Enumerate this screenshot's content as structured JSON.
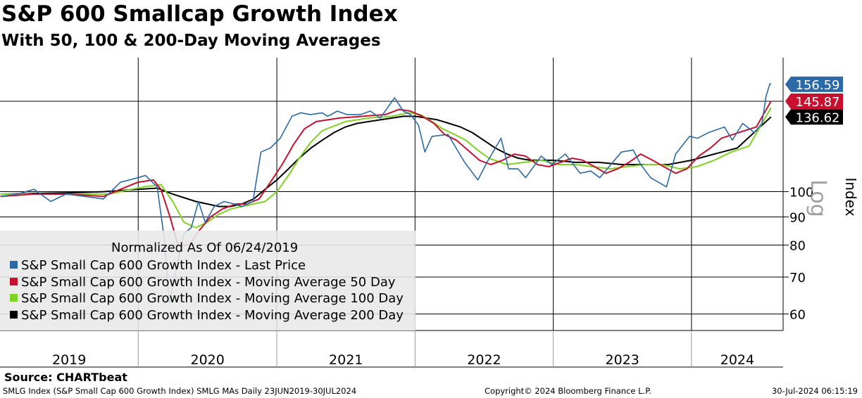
{
  "title": "S&P 600 Smallcap Growth Index",
  "subtitle": "With 50, 100 & 200-Day Moving Averages",
  "source": "Source: CHARTbeat",
  "footer": {
    "left": "SMLG Index (S&P Small Cap 600 Growth Index) SMLG MAs  Daily 23JUN2019-30JUL2024",
    "middle": "Copyright© 2024 Bloomberg Finance L.P.",
    "right": "30-Jul-2024 06:15:19"
  },
  "legend": {
    "note": "Normalized As Of 06/24/2019",
    "items": [
      {
        "label": "S&P Small Cap 600 Growth Index - Last Price",
        "color": "#2b6aa6"
      },
      {
        "label": "S&P Small Cap 600 Growth Index - Moving Average 50 Day",
        "color": "#c8102e"
      },
      {
        "label": "S&P Small Cap 600 Growth Index - Moving Average 100 Day",
        "color": "#7fd321"
      },
      {
        "label": "S&P Small Cap 600 Growth Index - Moving Average 200 Day",
        "color": "#000000"
      }
    ]
  },
  "chart_data": {
    "type": "line",
    "title": "S&P 600 Smallcap Growth Index",
    "subtitle": "With 50, 100 & 200-Day Moving Averages",
    "ylabel": "Index",
    "yscale": "log",
    "yscale_label": "Log",
    "ylim": [
      56,
      175
    ],
    "y_ticks": [
      60,
      70,
      80,
      90,
      100
    ],
    "xlim": [
      "2019-01-01",
      "2024-08-30"
    ],
    "x_year_labels": [
      "2019",
      "2020",
      "2021",
      "2022",
      "2023",
      "2024"
    ],
    "last_value_tags": [
      {
        "value": "156.59",
        "bg": "#2b6aa6",
        "fg": "#ffffff",
        "series": "Last Price"
      },
      {
        "value": "145.87",
        "bg": "#c8102e",
        "fg": "#ffffff",
        "series": "Moving Average 50 Day"
      },
      {
        "value": "136.62",
        "bg": "#000000",
        "fg": "#ffffff",
        "series": "Moving Average 200 Day"
      }
    ],
    "series": [
      {
        "name": "S&P Small Cap 600 Growth Index - Last Price",
        "color": "#2b6aa6",
        "x": [
          "2019-01-02",
          "2019-02-15",
          "2019-04-01",
          "2019-05-15",
          "2019-06-24",
          "2019-08-15",
          "2019-10-01",
          "2019-11-15",
          "2019-12-31",
          "2020-01-20",
          "2020-02-20",
          "2020-03-10",
          "2020-03-23",
          "2020-04-10",
          "2020-05-01",
          "2020-05-20",
          "2020-06-08",
          "2020-06-26",
          "2020-07-20",
          "2020-08-15",
          "2020-09-10",
          "2020-10-01",
          "2020-10-30",
          "2020-11-20",
          "2020-12-15",
          "2021-01-10",
          "2021-02-10",
          "2021-03-05",
          "2021-03-31",
          "2021-05-01",
          "2021-05-15",
          "2021-06-10",
          "2021-07-05",
          "2021-08-10",
          "2021-09-05",
          "2021-10-01",
          "2021-11-08",
          "2021-12-01",
          "2021-12-20",
          "2022-01-10",
          "2022-01-27",
          "2022-02-15",
          "2022-03-29",
          "2022-05-12",
          "2022-06-16",
          "2022-07-10",
          "2022-08-16",
          "2022-09-05",
          "2022-09-30",
          "2022-10-20",
          "2022-11-30",
          "2022-12-28",
          "2023-02-02",
          "2023-03-13",
          "2023-04-10",
          "2023-05-04",
          "2023-06-30",
          "2023-07-31",
          "2023-08-20",
          "2023-09-15",
          "2023-10-27",
          "2023-11-20",
          "2023-12-27",
          "2024-01-17",
          "2024-02-15",
          "2024-03-28",
          "2024-04-18",
          "2024-05-15",
          "2024-06-15",
          "2024-07-05",
          "2024-07-16",
          "2024-07-26",
          "2024-07-29"
        ],
        "values": [
          98,
          99,
          101,
          96,
          99,
          98,
          97,
          104,
          106,
          107,
          102,
          82,
          63,
          72,
          84,
          86,
          96,
          88,
          94,
          96,
          95,
          94,
          96,
          118,
          120,
          125,
          137,
          139,
          138,
          139,
          137,
          140,
          138,
          138,
          140,
          136,
          148,
          140,
          138,
          132,
          118,
          126,
          127,
          113,
          105,
          113,
          125,
          110,
          110,
          106,
          116,
          112,
          117,
          108,
          109,
          106,
          118,
          119,
          112,
          106,
          102,
          117,
          126,
          125,
          128,
          131,
          124,
          133,
          128,
          133,
          149,
          157,
          156.59
        ]
      },
      {
        "name": "S&P Small Cap 600 Growth Index - Moving Average 50 Day",
        "color": "#c8102e",
        "x": [
          "2019-01-02",
          "2019-04-01",
          "2019-06-24",
          "2019-08-15",
          "2019-10-01",
          "2019-11-15",
          "2019-12-31",
          "2020-02-10",
          "2020-03-01",
          "2020-03-25",
          "2020-04-15",
          "2020-05-15",
          "2020-06-10",
          "2020-07-10",
          "2020-08-10",
          "2020-09-15",
          "2020-10-15",
          "2020-11-15",
          "2020-12-15",
          "2021-01-15",
          "2021-02-15",
          "2021-03-15",
          "2021-04-15",
          "2021-06-15",
          "2021-08-15",
          "2021-10-15",
          "2021-11-20",
          "2021-12-20",
          "2022-01-20",
          "2022-02-20",
          "2022-03-20",
          "2022-04-20",
          "2022-05-20",
          "2022-06-20",
          "2022-07-20",
          "2022-08-20",
          "2022-09-20",
          "2022-10-20",
          "2022-11-20",
          "2022-12-20",
          "2023-01-20",
          "2023-02-20",
          "2023-03-20",
          "2023-04-20",
          "2023-05-20",
          "2023-06-20",
          "2023-07-20",
          "2023-08-20",
          "2023-09-20",
          "2023-10-20",
          "2023-11-20",
          "2023-12-20",
          "2024-01-20",
          "2024-02-20",
          "2024-03-20",
          "2024-04-20",
          "2024-05-20",
          "2024-06-20",
          "2024-07-29"
        ],
        "values": [
          98,
          99,
          99,
          98.5,
          98,
          101,
          104,
          105,
          101,
          90,
          80,
          80,
          85,
          90,
          93,
          95,
          95,
          97,
          104,
          112,
          122,
          130,
          134,
          136,
          137,
          138,
          141,
          140,
          137,
          133,
          127,
          124,
          119,
          114,
          112,
          114,
          117,
          116,
          112,
          111,
          113,
          115,
          114,
          111,
          108,
          110,
          113,
          117,
          114,
          111,
          108,
          110,
          116,
          120,
          125,
          127,
          129,
          131,
          145.87
        ]
      },
      {
        "name": "S&P Small Cap 600 Growth Index - Moving Average 100 Day",
        "color": "#7fd321",
        "x": [
          "2019-01-02",
          "2019-06-24",
          "2019-10-15",
          "2020-01-15",
          "2020-03-01",
          "2020-04-01",
          "2020-05-01",
          "2020-06-01",
          "2020-07-01",
          "2020-08-01",
          "2020-09-01",
          "2020-10-01",
          "2020-11-01",
          "2020-12-01",
          "2021-01-01",
          "2021-02-01",
          "2021-03-01",
          "2021-04-01",
          "2021-05-01",
          "2021-07-01",
          "2021-09-01",
          "2021-11-01",
          "2021-12-15",
          "2022-01-15",
          "2022-02-15",
          "2022-03-15",
          "2022-04-15",
          "2022-05-15",
          "2022-06-15",
          "2022-07-15",
          "2022-09-01",
          "2022-10-15",
          "2022-12-01",
          "2023-01-15",
          "2023-03-01",
          "2023-04-15",
          "2023-06-01",
          "2023-07-15",
          "2023-09-01",
          "2023-10-15",
          "2023-12-01",
          "2024-01-15",
          "2024-03-01",
          "2024-04-15",
          "2024-06-01",
          "2024-07-29"
        ],
        "values": [
          99,
          99,
          99,
          102,
          103,
          96,
          88,
          86,
          88,
          91,
          93,
          94,
          95,
          96,
          100,
          107,
          115,
          123,
          129,
          134,
          136,
          137,
          139,
          138,
          134,
          130,
          127,
          124,
          119,
          115,
          112,
          113,
          114,
          112,
          112,
          111,
          110,
          111,
          112,
          112,
          110,
          111,
          114,
          118,
          121,
          142
        ]
      },
      {
        "name": "S&P Small Cap 600 Growth Index - Moving Average 200 Day",
        "color": "#000000",
        "x": [
          "2019-01-02",
          "2019-06-24",
          "2019-10-01",
          "2020-01-01",
          "2020-02-20",
          "2020-04-01",
          "2020-06-01",
          "2020-08-01",
          "2020-09-01",
          "2020-10-01",
          "2020-11-01",
          "2020-12-01",
          "2021-01-01",
          "2021-02-01",
          "2021-03-01",
          "2021-04-01",
          "2021-05-01",
          "2021-06-01",
          "2021-07-01",
          "2021-08-01",
          "2021-09-01",
          "2021-10-01",
          "2021-11-01",
          "2021-12-01",
          "2022-01-01",
          "2022-02-01",
          "2022-03-01",
          "2022-04-01",
          "2022-05-01",
          "2022-06-01",
          "2022-07-01",
          "2022-08-01",
          "2022-09-01",
          "2022-10-01",
          "2022-11-01",
          "2022-12-01",
          "2023-01-01",
          "2023-03-01",
          "2023-05-01",
          "2023-07-01",
          "2023-09-01",
          "2023-11-01",
          "2024-01-01",
          "2024-03-01",
          "2024-05-01",
          "2024-07-29"
        ],
        "values": [
          99,
          99.5,
          100,
          101,
          101.5,
          99,
          96,
          94,
          94,
          95,
          97,
          101,
          105,
          110,
          115,
          120,
          124,
          128,
          131,
          133,
          134,
          135,
          136,
          137,
          137,
          136,
          135,
          133,
          131,
          128,
          124,
          120,
          117,
          115,
          114,
          114,
          114,
          113,
          113,
          112,
          112,
          112,
          114,
          117,
          120,
          136.62
        ]
      }
    ]
  }
}
